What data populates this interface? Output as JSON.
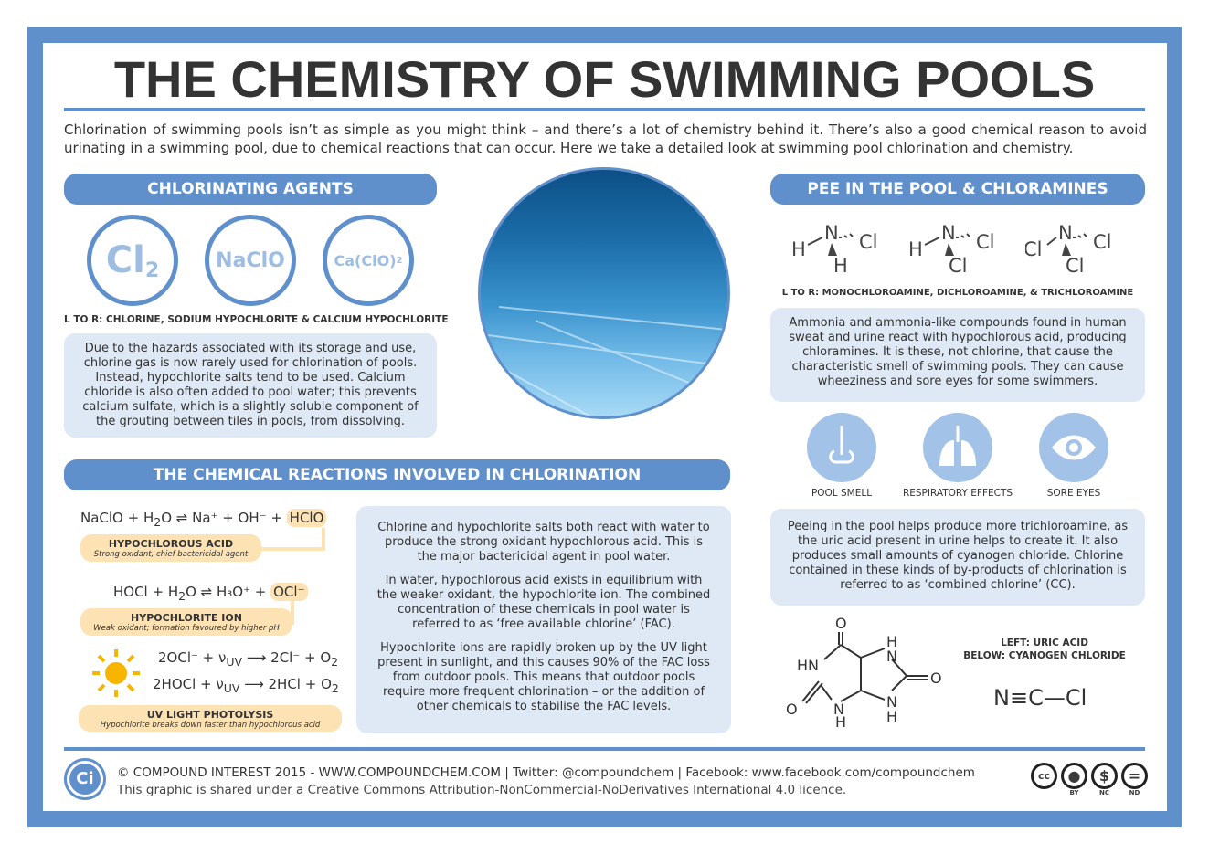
{
  "title": "THE CHEMISTRY OF SWIMMING POOLS",
  "intro": "Chlorination of swimming pools isn’t as simple as you might think – and there’s a lot of chemistry behind it. There’s also a good chemical reason to avoid urinating in a swimming pool, due to chemical reactions that can occur. Here we take a detailed look at swimming pool chlorination and chemistry.",
  "colors": {
    "accent": "#5f90cc",
    "light": "#dfe8f5",
    "peach": "#fde2b4",
    "sun": "#f7b500"
  },
  "agents": {
    "header": "CHLORINATING AGENTS",
    "items": [
      "Cl",
      "NaClO",
      "Ca(ClO)"
    ],
    "subs": [
      "2",
      "",
      "2"
    ],
    "caption": "L TO R: CHLORINE, SODIUM HYPOCHLORITE & CALCIUM HYPOCHLORITE",
    "text": "Due to the hazards associated with its storage and use, chlorine gas is now rarely used for chlorination of pools. Instead, hypochlorite salts tend to be used. Calcium chloride is also often added to pool water; this prevents calcium sulfate, which is a slightly soluble component of the grouting between tiles in pools, from dissolving."
  },
  "reactions": {
    "header": "THE CHEMICAL REACTIONS INVOLVED IN CHLORINATION",
    "eq1": {
      "left": "NaClO + H",
      "sub": "2",
      "mid": "O ⇌ Na⁺ + OH⁻ +",
      "product": "HClO"
    },
    "label1": {
      "title": "HYPOCHLOROUS ACID",
      "desc": "Strong oxidant, chief bactericidal agent"
    },
    "eq2": {
      "left": "HOCl + H",
      "sub": "2",
      "mid": "O ⇌ H₃O⁺ +",
      "product": "OCl⁻"
    },
    "label2": {
      "title": "HYPOCHLORITE ION",
      "desc": "Weak oxidant; formation favoured by higher pH"
    },
    "eq3": "2OCl⁻ + ν<sub>UV</sub> ⟶ 2Cl⁻ + O<sub>2</sub>",
    "eq4": "2HOCl + ν<sub>UV</sub> ⟶ 2HCl + O<sub>2</sub>",
    "label3": {
      "title": "UV LIGHT PHOTOLYSIS",
      "desc": "Hypochlorite breaks down faster than hypochlorous acid"
    },
    "paragraphs": [
      "Chlorine and hypochlorite salts both react with water to produce the strong oxidant hypochlorous acid. This is the major bactericidal agent in pool water.",
      "In water, hypochlorous acid exists in equilibrium with the weaker oxidant, the hypochlorite ion. The combined concentration of these chemicals in pool water is referred to as ‘free available chlorine’ (FAC).",
      "Hypochlorite ions are rapidly broken up by the UV light present in sunlight, and this causes 90% of the FAC loss from outdoor pools. This means that outdoor pools require more frequent chlorination – or the addition of other chemicals to stabilise the FAC levels."
    ]
  },
  "pee": {
    "header": "PEE IN THE POOL & CHLORAMINES",
    "structures": [
      [
        "H",
        "N",
        "Cl",
        "H"
      ],
      [
        "H",
        "N",
        "Cl",
        "Cl"
      ],
      [
        "Cl",
        "N",
        "Cl",
        "Cl"
      ]
    ],
    "caption": "L TO R: MONOCHLOROAMINE, DICHLOROAMINE, & TRICHLOROAMINE",
    "text1": "Ammonia and ammonia-like compounds found in human sweat and urine react with hypochlorous acid, producing chloramines. It is these, not chlorine, that cause the characteristic smell of swimming pools. They can cause wheeziness and sore eyes for some swimmers.",
    "effects": [
      "POOL SMELL",
      "RESPIRATORY EFFECTS",
      "SORE EYES"
    ],
    "text2": "Peeing in the pool helps produce more trichloroamine, as the uric acid present in urine helps to create it. It also produces small amounts of cyanogen chloride. Chlorine contained in these kinds of by-products of chlorination is referred to as ‘combined chlorine’ (CC).",
    "caption2a": "LEFT: URIC ACID",
    "caption2b": "BELOW: CYANOGEN CHLORIDE",
    "cyanogen": "N≡C—Cl"
  },
  "footer": {
    "logo": "Ci",
    "line1": "© COMPOUND INTEREST 2015 - WWW.COMPOUNDCHEM.COM | Twitter: @compoundchem | Facebook: www.facebook.com/compoundchem",
    "line2": "This graphic is shared under a Creative Commons Attribution-NonCommercial-NoDerivatives International 4.0 licence.",
    "license": [
      "cc",
      "BY",
      "NC",
      "ND"
    ]
  }
}
